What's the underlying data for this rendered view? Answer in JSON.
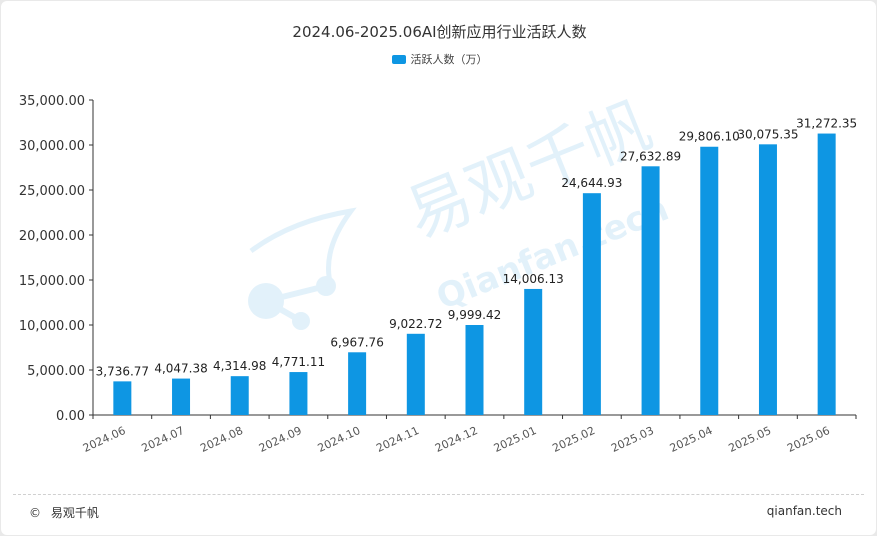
{
  "chart_data": {
    "type": "bar",
    "title": "2024.06-2025.06AI创新应用行业活跃人数",
    "categories": [
      "2024.06",
      "2024.07",
      "2024.08",
      "2024.09",
      "2024.10",
      "2024.11",
      "2024.12",
      "2025.01",
      "2025.02",
      "2025.03",
      "2025.04",
      "2025.05",
      "2025.06"
    ],
    "series": [
      {
        "name": "活跃人数（万）",
        "values": [
          3736.77,
          4047.38,
          4314.98,
          4771.11,
          6967.76,
          9022.72,
          9999.42,
          14006.13,
          24644.93,
          27632.89,
          29806.1,
          30075.35,
          31272.35
        ],
        "labels": [
          "3,736.77",
          "4,047.38",
          "4,314.98",
          "4,771.11",
          "6,967.76",
          "9,022.72",
          "9,999.42",
          "14,006.13",
          "24,644.93",
          "27,632.89",
          "29,806.10",
          "30,075.35",
          "31,272.35"
        ],
        "color": "#0e96e3"
      }
    ],
    "ylim": [
      0,
      35000
    ],
    "yticks": [
      0,
      5000,
      10000,
      15000,
      20000,
      25000,
      30000,
      35000
    ],
    "ytick_labels": [
      "0.00",
      "5,000.00",
      "10,000.00",
      "15,000.00",
      "20,000.00",
      "25,000.00",
      "30,000.00",
      "35,000.00"
    ],
    "xlabel": "",
    "ylabel": "",
    "legend_position": "top-center",
    "grid": false
  },
  "watermark": {
    "brand": "易观千帆",
    "site": "Qianfan.tech"
  },
  "footer": {
    "copyright_symbol": "©",
    "brand": "易观千帆",
    "site": "qianfan.tech"
  },
  "colors": {
    "bar": "#0e96e3",
    "axis": "#333333",
    "text": "#333333"
  }
}
